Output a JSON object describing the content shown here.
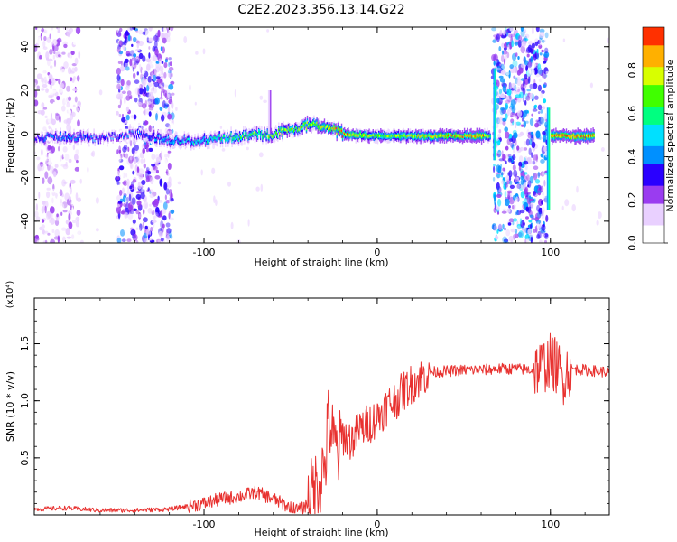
{
  "figure_title": "C2E2.2023.356.13.14.G22",
  "chart_data": [
    {
      "type": "heatmap",
      "xlabel": "Height of straight line (km)",
      "ylabel": "Frequency (Hz)",
      "xlim": [
        -198,
        134
      ],
      "ylim": [
        -50,
        49
      ],
      "xticks": [
        -100,
        0,
        100
      ],
      "yticks": [
        -40,
        -20,
        0,
        20,
        40
      ],
      "colorbar": {
        "label": "Normalized spectral amplitude",
        "range": [
          0,
          1
        ],
        "ticks": [
          "0.0",
          "0.2",
          "0.4",
          "0.6",
          "0.8"
        ],
        "colors": [
          "#ffffff",
          "#e9d0ff",
          "#9a3cf0",
          "#2a00ff",
          "#0090ff",
          "#00e0ff",
          "#00ff80",
          "#40ff00",
          "#d8ff00",
          "#ffb000",
          "#ff3000",
          "#ff0060"
        ]
      },
      "ridge": {
        "x": [
          -198,
          -180,
          -160,
          -140,
          -120,
          -100,
          -80,
          -60,
          -40,
          -30,
          -20,
          0,
          20,
          40,
          60,
          65
        ],
        "frequency": [
          -2,
          -1,
          -2,
          0,
          -3,
          -3,
          -1,
          0,
          4,
          4,
          0,
          -1,
          -1,
          -1,
          -1,
          -1
        ],
        "amplitude": [
          0.3,
          0.35,
          0.3,
          0.3,
          0.4,
          0.45,
          0.55,
          0.6,
          0.65,
          0.7,
          0.75,
          0.6,
          0.65,
          0.7,
          0.75,
          0.55
        ]
      },
      "broadband_regions": [
        {
          "x_range": [
            -198,
            -172
          ],
          "amplitude": 0.2
        },
        {
          "x_range": [
            -150,
            -118
          ],
          "amplitude": 0.35
        },
        {
          "x_range": [
            67,
            98
          ],
          "amplitude": 0.45
        }
      ]
    },
    {
      "type": "line",
      "xlabel": "Height of straight line (km)",
      "ylabel": "SNR (10 * v/v)",
      "y_multiplier": "(x10⁴)",
      "xlim": [
        -198,
        134
      ],
      "ylim": [
        0,
        1.9
      ],
      "xticks": [
        -100,
        0,
        100
      ],
      "yticks": [
        0.5,
        1.0,
        1.5
      ],
      "color": "#e8312f",
      "x": [
        -198,
        -180,
        -160,
        -140,
        -120,
        -100,
        -90,
        -80,
        -70,
        -60,
        -50,
        -45,
        -40,
        -35,
        -30,
        -28,
        -25,
        -22,
        -20,
        -15,
        -10,
        -5,
        0,
        5,
        10,
        15,
        20,
        25,
        30,
        40,
        50,
        60,
        70,
        80,
        90,
        95,
        100,
        104,
        107,
        110,
        120,
        134
      ],
      "y": [
        0.05,
        0.06,
        0.04,
        0.04,
        0.05,
        0.1,
        0.14,
        0.16,
        0.2,
        0.14,
        0.06,
        0.04,
        0.1,
        0.25,
        0.45,
        0.85,
        0.6,
        0.55,
        0.7,
        0.65,
        0.75,
        0.8,
        0.85,
        0.95,
        1.0,
        1.08,
        1.15,
        1.2,
        1.25,
        1.26,
        1.27,
        1.27,
        1.28,
        1.28,
        1.27,
        1.3,
        1.35,
        1.3,
        1.2,
        1.28,
        1.27,
        1.25
      ]
    }
  ]
}
